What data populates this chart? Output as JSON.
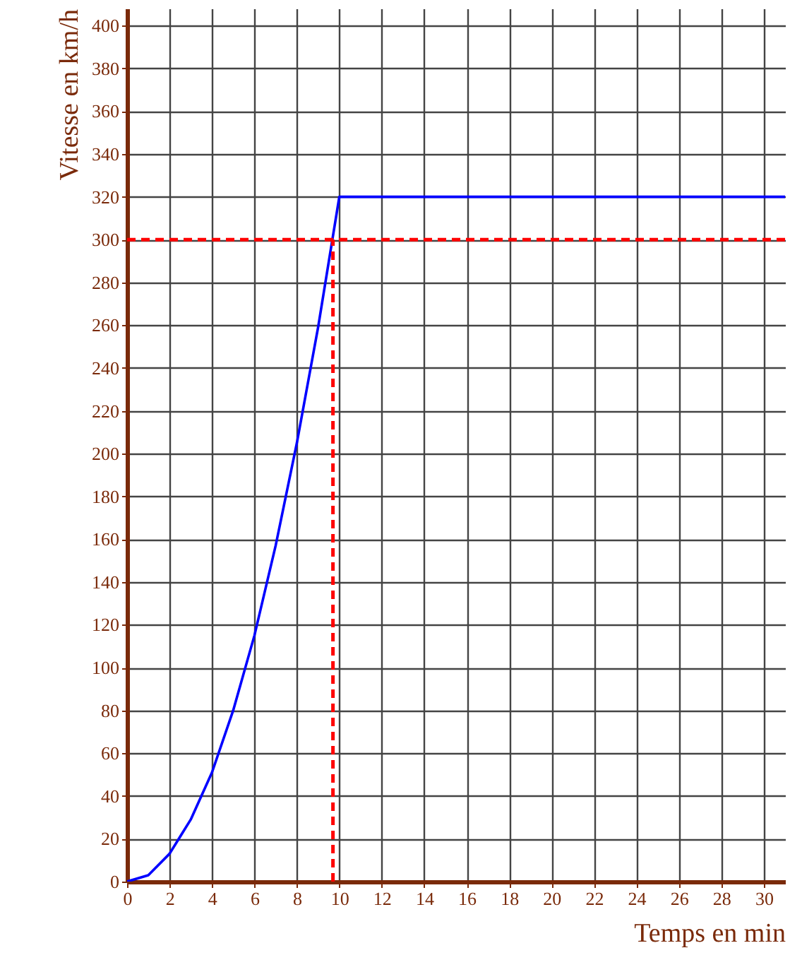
{
  "chart_data": {
    "type": "line",
    "xlabel": "Temps en min",
    "ylabel": "Vitesse en km/h",
    "x": [
      0,
      1,
      2,
      3,
      4,
      5,
      6,
      7,
      8,
      9,
      10,
      31
    ],
    "series": [
      {
        "color": "#0000ff",
        "values": [
          0,
          3,
          13,
          29,
          51,
          80,
          115,
          157,
          205,
          259,
          320,
          320
        ]
      }
    ],
    "xlim": [
      0,
      31
    ],
    "ylim": [
      0,
      408
    ],
    "xticks": [
      0,
      2,
      4,
      6,
      8,
      10,
      12,
      14,
      16,
      18,
      20,
      22,
      24,
      26,
      28,
      30
    ],
    "yticks": [
      0,
      20,
      40,
      60,
      80,
      100,
      120,
      140,
      160,
      180,
      200,
      220,
      240,
      260,
      280,
      300,
      320,
      340,
      360,
      380,
      400
    ],
    "ref_lines": [
      {
        "axis": "y",
        "value": 300,
        "color": "#ff0000",
        "line_style": "dashed"
      },
      {
        "axis": "x",
        "value": 9.7,
        "color": "#ff0000",
        "line_style": "dashed"
      }
    ],
    "grid": true,
    "marker": "none",
    "line_style": "solid"
  }
}
